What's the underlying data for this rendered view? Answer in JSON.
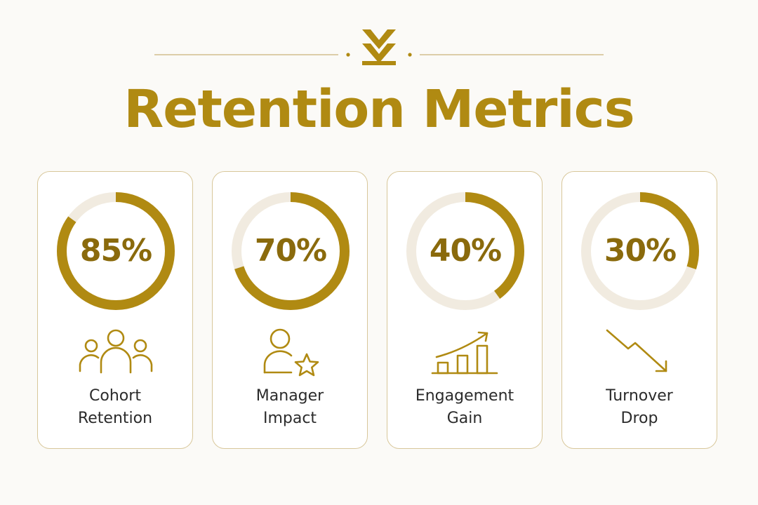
{
  "title": "Retention Metrics",
  "colors": {
    "accent": "#b08a12",
    "track": "#f1ebe0",
    "value_text": "#8a6a0c",
    "label_text": "#2b2b2b",
    "card_border": "#d8c79a"
  },
  "chart_data": {
    "type": "pie",
    "title": "Retention Metrics",
    "unit": "%",
    "items": [
      {
        "label_lines": [
          "Cohort",
          "Retention"
        ],
        "value": 85,
        "display": "85%",
        "icon": "people-group-icon"
      },
      {
        "label_lines": [
          "Manager",
          "Impact"
        ],
        "value": 70,
        "display": "70%",
        "icon": "person-star-icon"
      },
      {
        "label_lines": [
          "Engagement",
          "Gain"
        ],
        "value": 40,
        "display": "40%",
        "icon": "growth-bar-chart-icon"
      },
      {
        "label_lines": [
          "Turnover",
          "Drop"
        ],
        "value": 30,
        "display": "30%",
        "icon": "trend-down-arrow-icon"
      }
    ]
  }
}
